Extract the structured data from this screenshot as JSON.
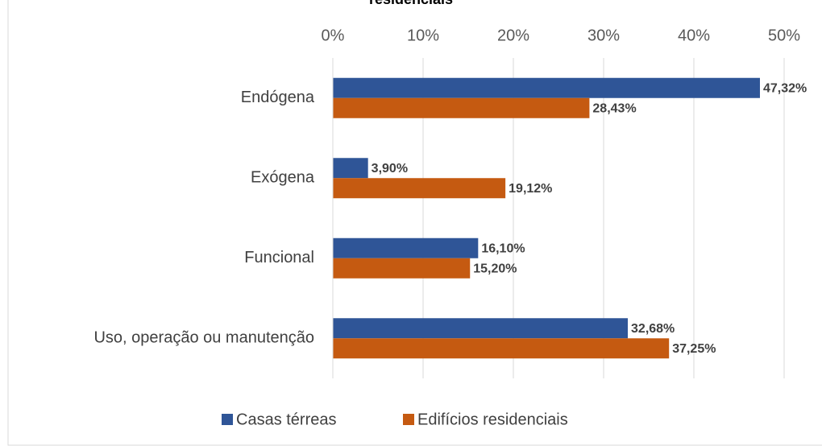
{
  "chart_data": {
    "type": "barh",
    "title": "residenciais",
    "categories": [
      "Endógena",
      "Exógena",
      "Funcional",
      "Uso, operação ou manutenção"
    ],
    "series": [
      {
        "name": "Casas térreas",
        "color": "#2f5597",
        "values": [
          47.32,
          3.9,
          16.1,
          32.68
        ],
        "value_labels": [
          "47,32%",
          "3,90%",
          "16,10%",
          "32,68%"
        ]
      },
      {
        "name": "Edifícios residenciais",
        "color": "#c55a11",
        "values": [
          28.43,
          19.12,
          15.2,
          37.25
        ],
        "value_labels": [
          "28,43%",
          "19,12%",
          "15,20%",
          "37,25%"
        ]
      }
    ],
    "xlim": [
      0,
      50
    ],
    "xticks": [
      {
        "value": 0,
        "label": "0%"
      },
      {
        "value": 10,
        "label": "10%"
      },
      {
        "value": 20,
        "label": "20%"
      },
      {
        "value": 30,
        "label": "30%"
      },
      {
        "value": 40,
        "label": "40%"
      },
      {
        "value": 50,
        "label": "50%"
      }
    ],
    "grid": true,
    "legend": "bottom"
  }
}
